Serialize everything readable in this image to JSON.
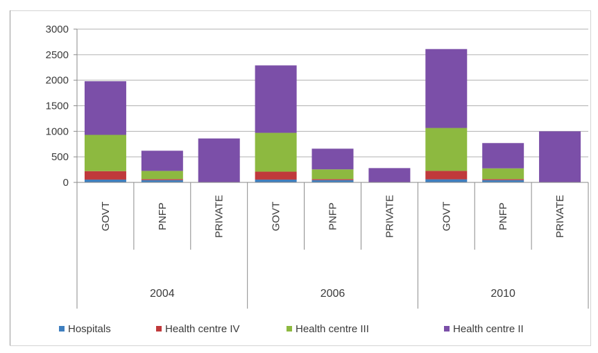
{
  "chart_data": {
    "type": "bar",
    "stacked": true,
    "groups": [
      {
        "label": "2004",
        "categories": [
          "GOVT",
          "PNFP",
          "PRIVATE"
        ]
      },
      {
        "label": "2006",
        "categories": [
          "GOVT",
          "PNFP",
          "PRIVATE"
        ]
      },
      {
        "label": "2010",
        "categories": [
          "GOVT",
          "PNFP",
          "PRIVATE"
        ]
      }
    ],
    "series": [
      {
        "name": "Hospitals",
        "color": "#3f7fbf",
        "values": [
          55,
          45,
          0,
          55,
          45,
          0,
          60,
          45,
          0
        ]
      },
      {
        "name": "Health centre IV",
        "color": "#c0393b",
        "values": [
          165,
          20,
          0,
          155,
          20,
          0,
          165,
          20,
          0
        ]
      },
      {
        "name": "Health centre III",
        "color": "#8db940",
        "values": [
          710,
          160,
          0,
          760,
          190,
          0,
          840,
          210,
          0
        ]
      },
      {
        "name": "Health centre II",
        "color": "#7b4fa8",
        "values": [
          1050,
          395,
          860,
          1320,
          405,
          280,
          1545,
          495,
          1000
        ]
      }
    ],
    "ylim": [
      0,
      3000
    ],
    "yticks": [
      "0",
      "500",
      "1000",
      "1500",
      "2000",
      "2500",
      "3000"
    ],
    "grid": true,
    "legend": "bottom"
  }
}
